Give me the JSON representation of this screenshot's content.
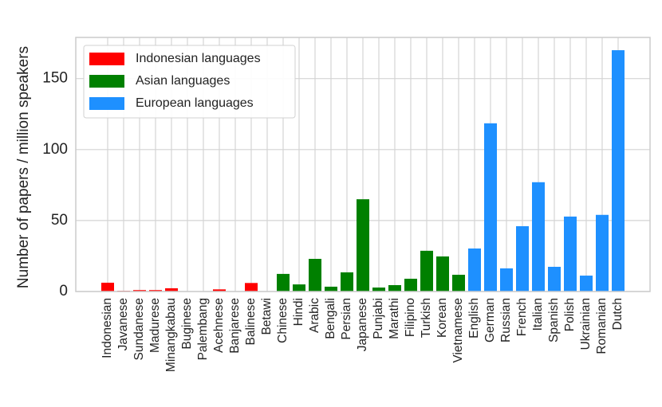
{
  "chart_data": {
    "type": "bar",
    "y_label": "Number of papers / million speakers",
    "categories": [
      "Indonesian",
      "Javanese",
      "Sundanese",
      "Madurese",
      "Minangkabau",
      "Buginese",
      "Palembang",
      "Acehnese",
      "Banjarese",
      "Balinese",
      "Betawi",
      "Chinese",
      "Hindi",
      "Arabic",
      "Bengali",
      "Persian",
      "Japanese",
      "Punjabi",
      "Marathi",
      "Filipino",
      "Turkish",
      "Korean",
      "Vietnamese",
      "English",
      "German",
      "Russian",
      "French",
      "Italian",
      "Spanish",
      "Polish",
      "Ukrainian",
      "Romanian",
      "Dutch"
    ],
    "series": [
      {
        "name": "Indonesian languages",
        "color": "#ff0000",
        "values": [
          6.2,
          0.5,
          1,
          1,
          2.3,
          0,
          0,
          1.5,
          0,
          6,
          0,
          null,
          null,
          null,
          null,
          null,
          null,
          null,
          null,
          null,
          null,
          null,
          null,
          null,
          null,
          null,
          null,
          null,
          null,
          null,
          null,
          null,
          null
        ]
      },
      {
        "name": "Asian languages",
        "color": "#008000",
        "values": [
          null,
          null,
          null,
          null,
          null,
          null,
          null,
          null,
          null,
          null,
          null,
          12.4,
          5,
          23,
          3.4,
          13.5,
          65,
          2.8,
          4.5,
          9,
          28.7,
          24.7,
          11.8,
          null,
          null,
          null,
          null,
          null,
          null,
          null,
          null,
          null,
          null
        ]
      },
      {
        "name": "European languages",
        "color": "#1e90ff",
        "values": [
          null,
          null,
          null,
          null,
          null,
          null,
          null,
          null,
          null,
          null,
          null,
          null,
          null,
          null,
          null,
          null,
          null,
          null,
          null,
          null,
          null,
          null,
          null,
          30.3,
          118.5,
          16.3,
          46,
          77,
          17.4,
          52.8,
          11.2,
          54,
          170
        ]
      }
    ],
    "ylim": [
      0,
      179
    ],
    "yticks": [
      0,
      50,
      100,
      150
    ],
    "grid": true,
    "legend": "upper left"
  }
}
